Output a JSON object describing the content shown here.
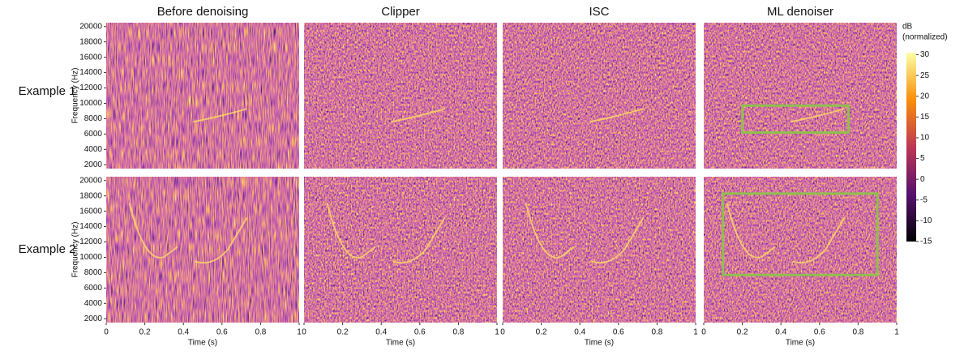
{
  "chart_data": {
    "type": "heatmap",
    "columns": [
      "Before denoising",
      "Clipper",
      "ISC",
      "ML denoiser"
    ],
    "rows": [
      "Example 1",
      "Example 2"
    ],
    "x_label": "Time (s)",
    "y_label": "Frequency (Hz)",
    "xlim": [
      0,
      1
    ],
    "xticks": [
      0,
      0.2,
      0.4,
      0.6,
      0.8,
      1
    ],
    "ylim": [
      1500,
      20500
    ],
    "yticks": [
      2000,
      4000,
      6000,
      8000,
      10000,
      12000,
      14000,
      16000,
      18000,
      20000
    ],
    "colorbar": {
      "label": [
        "dB",
        "(normalized)"
      ],
      "lim": [
        -15,
        30.5
      ],
      "ticks": [
        30,
        25,
        20,
        15,
        10,
        5,
        0,
        -5,
        -10,
        -15
      ]
    },
    "annotations": [
      {
        "row": 0,
        "column": 3,
        "color": "#8fbf4f",
        "x": [
          0.2,
          0.75
        ],
        "y": [
          6200,
          9700
        ]
      },
      {
        "row": 1,
        "column": 3,
        "color": "#8fbf4f",
        "x": [
          0.1,
          0.9
        ],
        "y": [
          7700,
          18300
        ]
      }
    ]
  }
}
